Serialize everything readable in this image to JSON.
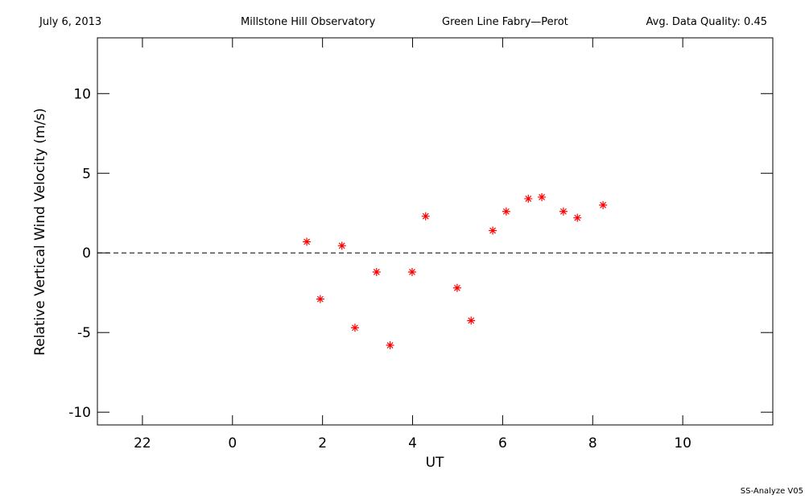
{
  "chart_data": {
    "type": "scatter",
    "header": [
      "July 6, 2013",
      "Millstone Hill Observatory",
      "Green Line Fabry—Perot",
      "Avg. Data Quality: 0.45"
    ],
    "footer": "SS-Analyze V05",
    "xlabel": "UT",
    "ylabel": "Relative Vertical Wind Velocity (m/s)",
    "xlim": [
      -3,
      12
    ],
    "ylim": [
      -10.8,
      13.5
    ],
    "xticks": [
      {
        "value": -2,
        "label": "22"
      },
      0,
      2,
      4,
      6,
      8,
      10
    ],
    "yticks": [
      -10,
      -5,
      0,
      5,
      10
    ],
    "zero_line": true,
    "series": [
      {
        "color": "#ff0000",
        "x": [
          1.65,
          1.95,
          2.43,
          2.72,
          3.2,
          3.5,
          3.99,
          4.29,
          4.99,
          5.3,
          5.78,
          6.08,
          6.57,
          6.87,
          7.35,
          7.66,
          8.23
        ],
        "values": [
          0.7,
          -2.9,
          0.45,
          -4.7,
          -1.2,
          -5.8,
          -1.2,
          2.3,
          -2.2,
          -4.25,
          1.4,
          2.6,
          3.4,
          3.5,
          2.6,
          2.2,
          3.0
        ]
      }
    ]
  }
}
